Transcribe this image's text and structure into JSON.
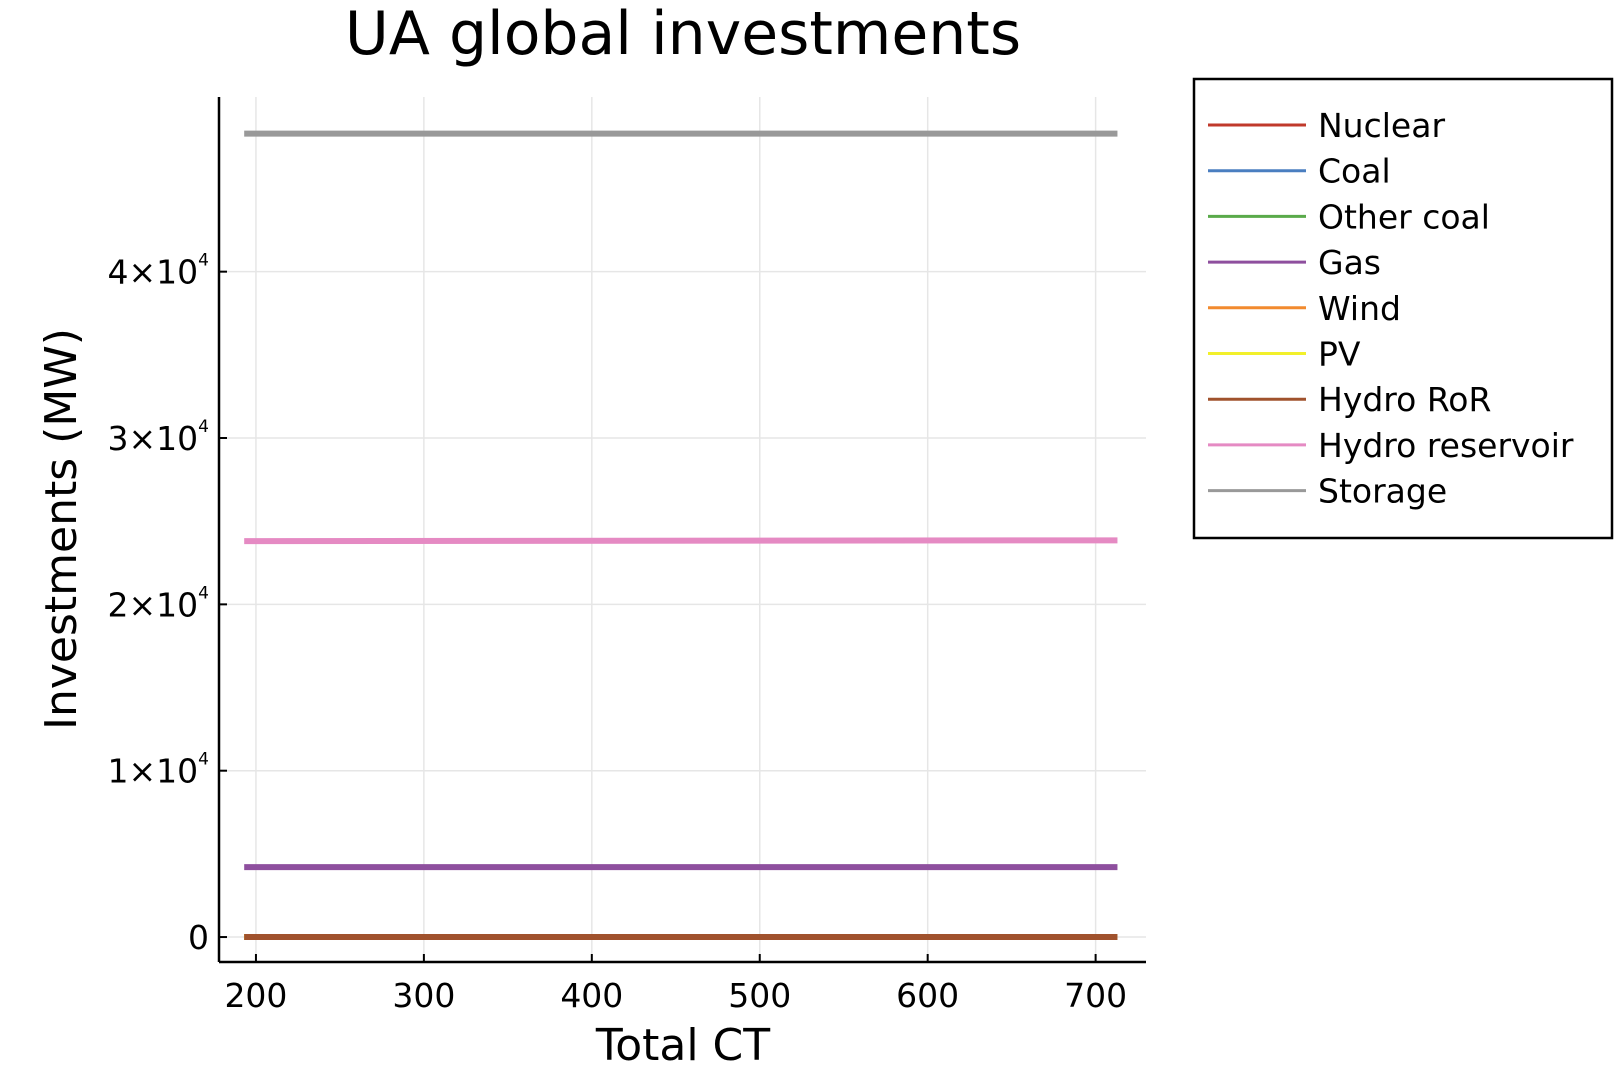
{
  "chart_data": {
    "type": "line",
    "title": "UA global investments",
    "xlabel": "Total CT",
    "ylabel": "Investments (MW)",
    "xlim": [
      178,
      730
    ],
    "ylim": [
      -1500,
      50500
    ],
    "xticks": [
      {
        "value": 200,
        "label": "200"
      },
      {
        "value": 300,
        "label": "300"
      },
      {
        "value": 400,
        "label": "400"
      },
      {
        "value": 500,
        "label": "500"
      },
      {
        "value": 600,
        "label": "600"
      },
      {
        "value": 700,
        "label": "700"
      }
    ],
    "yticks": [
      {
        "value": 0,
        "label": "0",
        "mantissa": "0",
        "exponent": ""
      },
      {
        "value": 10000,
        "label": "1×10^4",
        "mantissa": "1×10",
        "exponent": "4"
      },
      {
        "value": 20000,
        "label": "2×10^4",
        "mantissa": "2×10",
        "exponent": "4"
      },
      {
        "value": 30000,
        "label": "3×10^4",
        "mantissa": "3×10",
        "exponent": "4"
      },
      {
        "value": 40000,
        "label": "4×10^4",
        "mantissa": "4×10",
        "exponent": "4"
      }
    ],
    "grid": true,
    "legend_position": "outside-top-right",
    "x": [
      193,
      713
    ],
    "series": [
      {
        "name": "Nuclear",
        "color": "#c0392b",
        "values": [
          0,
          0
        ]
      },
      {
        "name": "Coal",
        "color": "#4a7ec0",
        "values": [
          0,
          0
        ]
      },
      {
        "name": "Other coal",
        "color": "#5aaa4a",
        "values": [
          0,
          0
        ]
      },
      {
        "name": "Gas",
        "color": "#8e4f9e",
        "values": [
          4200,
          4200
        ]
      },
      {
        "name": "Wind",
        "color": "#f28a2e",
        "values": [
          0,
          0
        ]
      },
      {
        "name": "PV",
        "color": "#f2f02a",
        "values": [
          0,
          0
        ]
      },
      {
        "name": "Hydro RoR",
        "color": "#a0522d",
        "values": [
          0,
          0
        ]
      },
      {
        "name": "Hydro reservoir",
        "color": "#e58ac3",
        "values": [
          23800,
          23850
        ]
      },
      {
        "name": "Storage",
        "color": "#999999",
        "values": [
          48300,
          48300
        ]
      }
    ]
  }
}
